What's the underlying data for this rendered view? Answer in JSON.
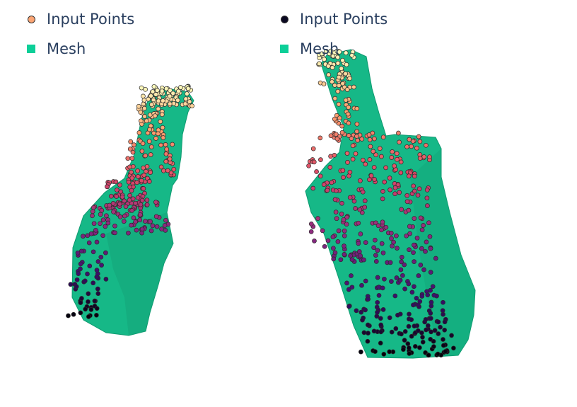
{
  "panels": [
    {
      "id": "left",
      "legend": [
        {
          "label": "Input Points",
          "kind": "points",
          "color": "#fca574"
        },
        {
          "label": "Mesh",
          "kind": "mesh",
          "color": "#0ccf98"
        }
      ]
    },
    {
      "id": "right",
      "legend": [
        {
          "label": "Input Points",
          "kind": "points",
          "color": "#0b0922"
        },
        {
          "label": "Mesh",
          "kind": "mesh",
          "color": "#0ccf98"
        }
      ]
    }
  ],
  "colors": {
    "mesh_fill": "#16b887",
    "mesh_edge": "#0f9a70",
    "marker_outline": "#2b2b2b",
    "colorscale": [
      "#000004",
      "#3b0f70",
      "#8c2981",
      "#de4968",
      "#fe9f6d",
      "#fcfdbf"
    ]
  }
}
